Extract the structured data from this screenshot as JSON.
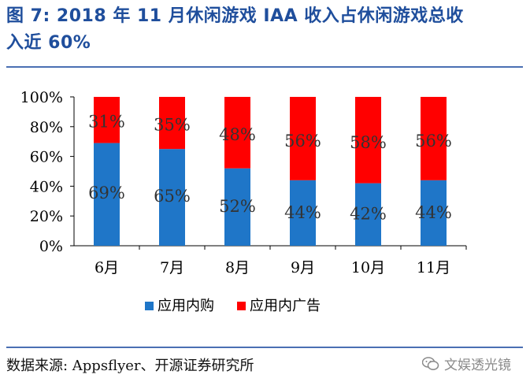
{
  "header": {
    "title_line1": "图 7:  2018 年 11 月休闲游戏 IAA 收入占休闲游戏总收",
    "title_line2": "入近 60%"
  },
  "colors": {
    "blue": "#1f76c8",
    "red": "#ff0000",
    "title": "#1f4e9c"
  },
  "chart_data": {
    "type": "bar",
    "stacked": true,
    "categories": [
      "6月",
      "7月",
      "8月",
      "9月",
      "10月",
      "11月"
    ],
    "series": [
      {
        "name": "应用内购",
        "values": [
          69,
          65,
          52,
          44,
          42,
          44
        ],
        "labels": [
          "69%",
          "65%",
          "52%",
          "44%",
          "42%",
          "44%"
        ]
      },
      {
        "name": "应用内广告",
        "values": [
          31,
          35,
          48,
          56,
          58,
          56
        ],
        "labels": [
          "31%",
          "35%",
          "48%",
          "56%",
          "58%",
          "56%"
        ]
      }
    ],
    "ylim": [
      0,
      100
    ],
    "yticks": [
      "0%",
      "20%",
      "40%",
      "60%",
      "80%",
      "100%"
    ],
    "legend_position": "bottom"
  },
  "footer": {
    "source": "数据来源: Appsflyer、开源证券研究所",
    "watermark": "文娱透光镜"
  }
}
